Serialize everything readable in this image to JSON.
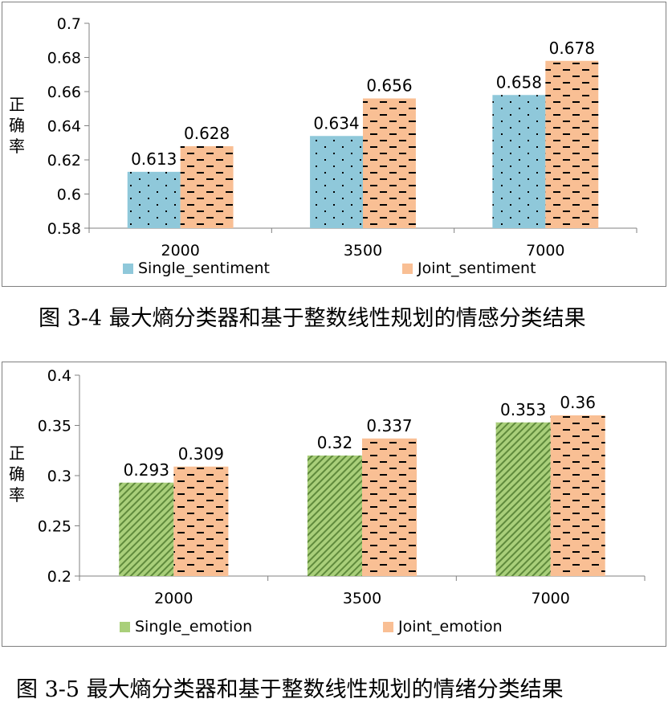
{
  "charts": [
    {
      "chart_data": {
        "type": "bar",
        "categories": [
          "2000",
          "3500",
          "7000"
        ],
        "series": [
          {
            "name": "Single_sentiment",
            "values": [
              0.613,
              0.634,
              0.658
            ],
            "value_labels": [
              "0.613",
              "0.634",
              "0.658"
            ],
            "color": "#8fc8da",
            "pattern": "dots"
          },
          {
            "name": "Joint_sentiment",
            "values": [
              0.628,
              0.656,
              0.678
            ],
            "value_labels": [
              "0.628",
              "0.656",
              "0.678"
            ],
            "color": "#f9bf94",
            "pattern": "dashes"
          }
        ],
        "ylabel": "正确率",
        "ylim": [
          0.58,
          0.7
        ],
        "yticks": [
          0.58,
          0.6,
          0.62,
          0.64,
          0.66,
          0.68,
          0.7
        ],
        "ytick_labels": [
          "0.58",
          "0.6",
          "0.62",
          "0.64",
          "0.66",
          "0.68",
          "0.7"
        ],
        "grid": false,
        "legend_position": "bottom"
      },
      "caption": "图 3-4  最大熵分类器和基于整数线性规划的情感分类结果"
    },
    {
      "chart_data": {
        "type": "bar",
        "categories": [
          "2000",
          "3500",
          "7000"
        ],
        "series": [
          {
            "name": "Single_emotion",
            "values": [
              0.293,
              0.32,
              0.353
            ],
            "value_labels": [
              "0.293",
              "0.32",
              "0.353"
            ],
            "color": "#a9cf7a",
            "pattern": "diagonal"
          },
          {
            "name": "Joint_emotion",
            "values": [
              0.309,
              0.337,
              0.36
            ],
            "value_labels": [
              "0.309",
              "0.337",
              "0.36"
            ],
            "color": "#f9bf94",
            "pattern": "dashes"
          }
        ],
        "ylabel": "正确率",
        "ylim": [
          0.2,
          0.4
        ],
        "yticks": [
          0.2,
          0.25,
          0.3,
          0.35,
          0.4
        ],
        "ytick_labels": [
          "0.2",
          "0.25",
          "0.3",
          "0.35",
          "0.4"
        ],
        "grid": false,
        "legend_position": "bottom"
      },
      "caption": "图 3-5  最大熵分类器和基于整数线性规划的情绪分类结果"
    }
  ]
}
